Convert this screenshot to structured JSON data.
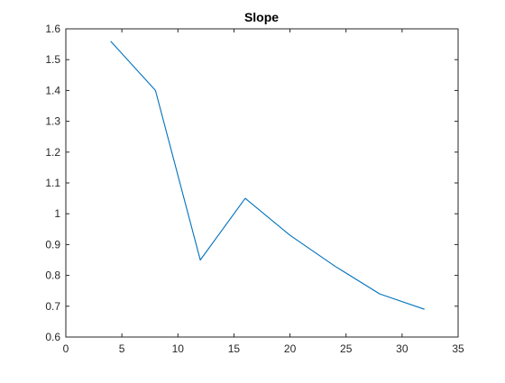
{
  "chart_data": {
    "type": "line",
    "title": "Slope",
    "xlabel": "",
    "ylabel": "",
    "xlim": [
      0,
      35
    ],
    "ylim": [
      0.6,
      1.6
    ],
    "xticks": [
      0,
      5,
      10,
      15,
      20,
      25,
      30,
      35
    ],
    "xtick_labels": [
      "0",
      "5",
      "10",
      "15",
      "20",
      "25",
      "30",
      "35"
    ],
    "yticks": [
      0.6,
      0.7,
      0.8,
      0.9,
      1.0,
      1.1,
      1.2,
      1.3,
      1.4,
      1.5,
      1.6
    ],
    "ytick_labels": [
      "0.6",
      "0.7",
      "0.8",
      "0.9",
      "1",
      "1.1",
      "1.2",
      "1.3",
      "1.4",
      "1.5",
      "1.6"
    ],
    "grid": false,
    "series": [
      {
        "color": "#0072BD",
        "x": [
          4,
          8,
          12,
          16,
          20,
          24,
          28,
          32
        ],
        "y": [
          1.56,
          1.4,
          0.85,
          1.05,
          0.93,
          0.83,
          0.74,
          0.69
        ]
      }
    ]
  }
}
